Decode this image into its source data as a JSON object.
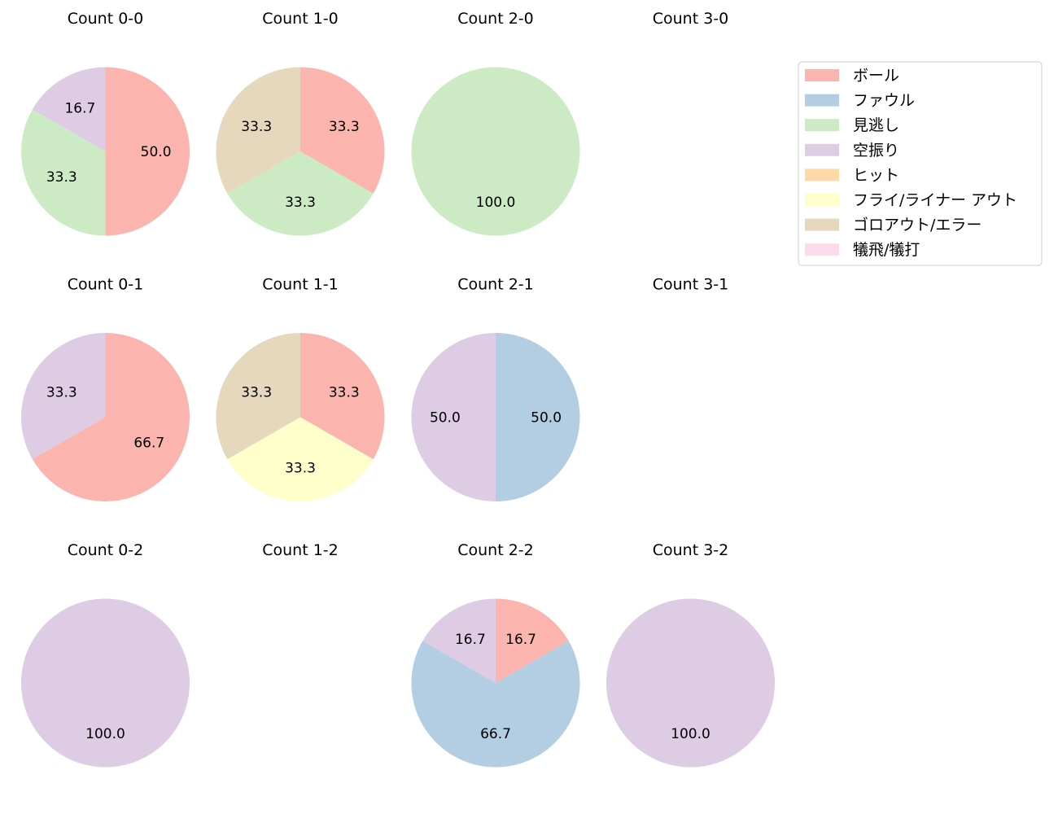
{
  "chart_data": {
    "type": "pie",
    "grid": {
      "rows": [
        "0",
        "1",
        "2"
      ],
      "cols": [
        "0",
        "1",
        "2",
        "3"
      ]
    },
    "colors": {
      "ボール": "#fbb4ae",
      "ファウル": "#b3cde3",
      "見逃し": "#ccebc5",
      "空振り": "#decbe4",
      "ヒット": "#fed9a6",
      "フライ/ライナー アウト": "#ffffcc",
      "ゴロアウト/エラー": "#e5d8bd",
      "犠飛/犠打": "#fddaec"
    },
    "legend": {
      "position": "top-right",
      "entries": [
        "ボール",
        "ファウル",
        "見逃し",
        "空振り",
        "ヒット",
        "フライ/ライナー アウト",
        "ゴロアウト/エラー",
        "犠飛/犠打"
      ]
    },
    "charts": [
      {
        "title": "Count 0-0",
        "balls": 0,
        "strikes": 0,
        "slices": [
          {
            "category": "ボール",
            "value": 50.0,
            "label": "50.0"
          },
          {
            "category": "見逃し",
            "value": 33.3,
            "label": "33.3"
          },
          {
            "category": "空振り",
            "value": 16.7,
            "label": "16.7"
          }
        ]
      },
      {
        "title": "Count 1-0",
        "balls": 1,
        "strikes": 0,
        "slices": [
          {
            "category": "ボール",
            "value": 33.3,
            "label": "33.3"
          },
          {
            "category": "見逃し",
            "value": 33.3,
            "label": "33.3"
          },
          {
            "category": "ゴロアウト/エラー",
            "value": 33.3,
            "label": "33.3"
          }
        ]
      },
      {
        "title": "Count 2-0",
        "balls": 2,
        "strikes": 0,
        "slices": [
          {
            "category": "見逃し",
            "value": 100.0,
            "label": "100.0"
          }
        ]
      },
      {
        "title": "Count 3-0",
        "balls": 3,
        "strikes": 0,
        "slices": []
      },
      {
        "title": "Count 0-1",
        "balls": 0,
        "strikes": 1,
        "slices": [
          {
            "category": "ボール",
            "value": 66.7,
            "label": "66.7"
          },
          {
            "category": "空振り",
            "value": 33.3,
            "label": "33.3"
          }
        ]
      },
      {
        "title": "Count 1-1",
        "balls": 1,
        "strikes": 1,
        "slices": [
          {
            "category": "ボール",
            "value": 33.3,
            "label": "33.3"
          },
          {
            "category": "フライ/ライナー アウト",
            "value": 33.3,
            "label": "33.3"
          },
          {
            "category": "ゴロアウト/エラー",
            "value": 33.3,
            "label": "33.3"
          }
        ]
      },
      {
        "title": "Count 2-1",
        "balls": 2,
        "strikes": 1,
        "slices": [
          {
            "category": "ファウル",
            "value": 50.0,
            "label": "50.0"
          },
          {
            "category": "空振り",
            "value": 50.0,
            "label": "50.0"
          }
        ]
      },
      {
        "title": "Count 3-1",
        "balls": 3,
        "strikes": 1,
        "slices": []
      },
      {
        "title": "Count 0-2",
        "balls": 0,
        "strikes": 2,
        "slices": [
          {
            "category": "空振り",
            "value": 100.0,
            "label": "100.0"
          }
        ]
      },
      {
        "title": "Count 1-2",
        "balls": 1,
        "strikes": 2,
        "slices": []
      },
      {
        "title": "Count 2-2",
        "balls": 2,
        "strikes": 2,
        "slices": [
          {
            "category": "ボール",
            "value": 16.7,
            "label": "16.7"
          },
          {
            "category": "ファウル",
            "value": 66.7,
            "label": "66.7"
          },
          {
            "category": "空振り",
            "value": 16.7,
            "label": "16.7"
          }
        ]
      },
      {
        "title": "Count 3-2",
        "balls": 3,
        "strikes": 2,
        "slices": [
          {
            "category": "空振り",
            "value": 100.0,
            "label": "100.0"
          }
        ]
      }
    ]
  }
}
